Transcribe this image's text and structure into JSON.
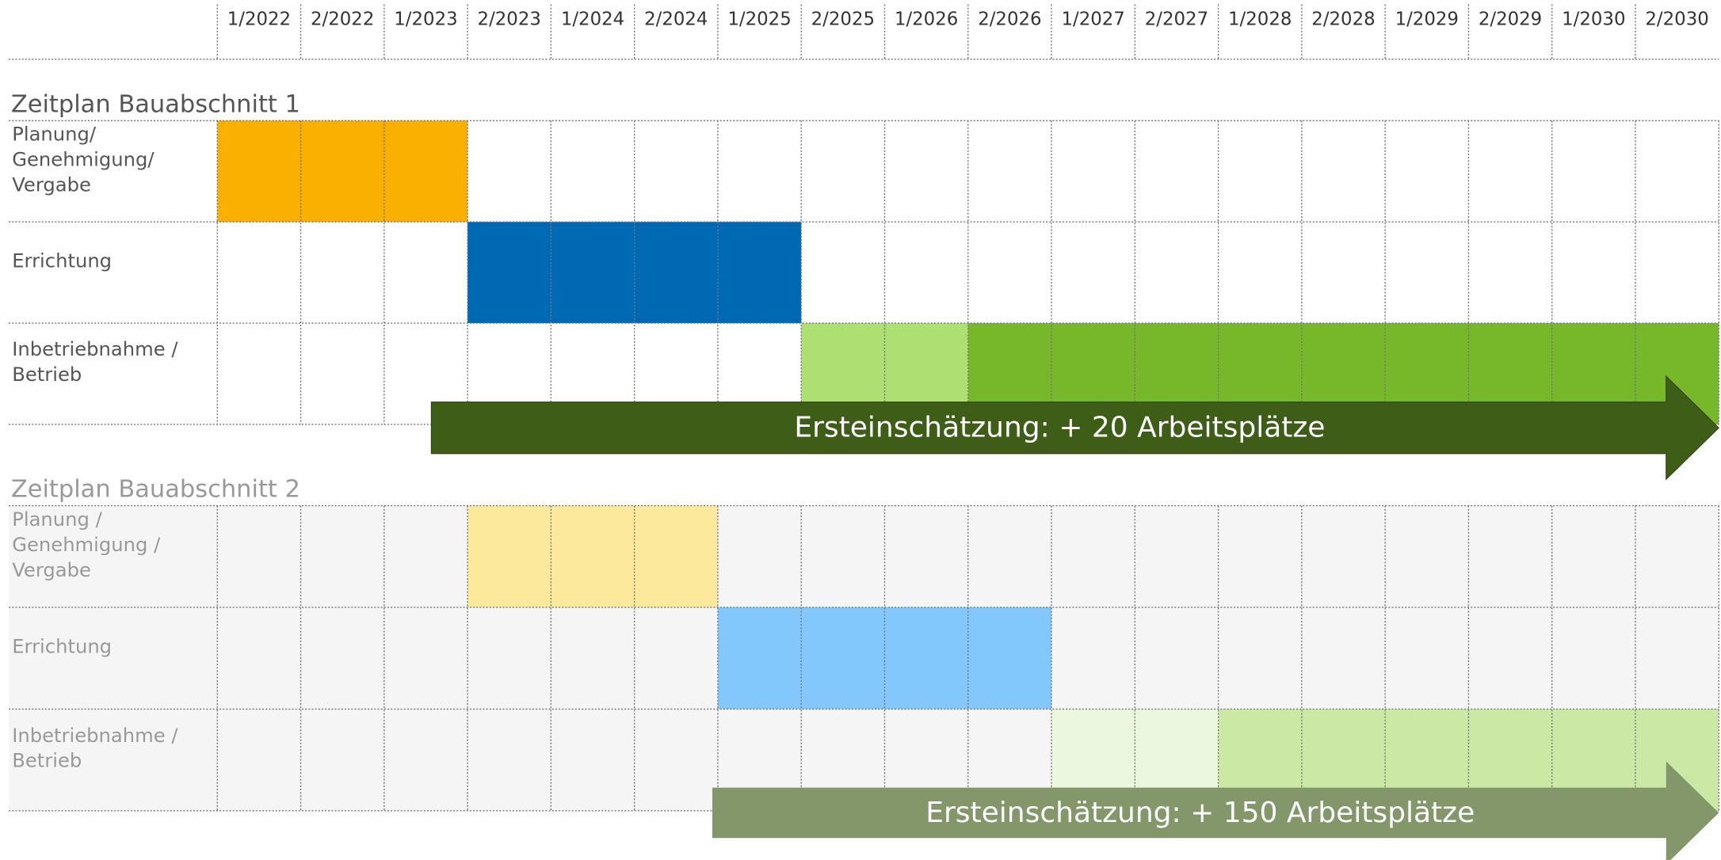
{
  "columns": [
    "1/2022",
    "2/2022",
    "1/2023",
    "2/2023",
    "1/2024",
    "2/2024",
    "1/2025",
    "2/2025",
    "1/2026",
    "2/2026",
    "1/2027",
    "2/2027",
    "1/2028",
    "2/2028",
    "1/2029",
    "2/2029",
    "1/2030",
    "2/2030"
  ],
  "sections": [
    {
      "title": "Zeitplan Bauabschnitt 1",
      "rows": [
        {
          "label": [
            "Planung/",
            "Genehmigung/",
            "Vergabe"
          ],
          "bars": [
            {
              "from": "1/2022",
              "to": "1/2023",
              "color": "#f9b000"
            }
          ]
        },
        {
          "label": [
            "Errichtung"
          ],
          "bars": [
            {
              "from": "2/2023",
              "to": "1/2025",
              "color": "#0069b4"
            }
          ]
        },
        {
          "label": [
            "Inbetriebnahme /",
            "Betrieb"
          ],
          "bars": [
            {
              "from": "2/2025",
              "to": "1/2026",
              "color": "#aedf72"
            },
            {
              "from": "2/2026",
              "to": "2/2030",
              "color": "#76b82a"
            }
          ]
        }
      ],
      "arrow": {
        "text": "Ersteinschätzung: + 20 Arbeitsplätze",
        "color": "#3e5e17"
      }
    },
    {
      "title": "Zeitplan Bauabschnitt 2",
      "rows": [
        {
          "label": [
            "Planung /",
            "Genehmigung /",
            "Vergabe"
          ],
          "bars": [
            {
              "from": "2/2023",
              "to": "2/2024",
              "color": "#fde99b"
            }
          ]
        },
        {
          "label": [
            "Errichtung"
          ],
          "bars": [
            {
              "from": "1/2025",
              "to": "2/2026",
              "color": "#82c8fc"
            }
          ]
        },
        {
          "label": [
            "Inbetriebnahme /",
            "Betrieb"
          ],
          "bars": [
            {
              "from": "1/2027",
              "to": "2/2027",
              "color": "#ebf7de"
            },
            {
              "from": "1/2028",
              "to": "2/2030",
              "color": "#cbe9a5"
            }
          ]
        }
      ],
      "arrow": {
        "text": "Ersteinschätzung: + 150 Arbeitsplätze",
        "color": "#83976a"
      }
    }
  ]
}
